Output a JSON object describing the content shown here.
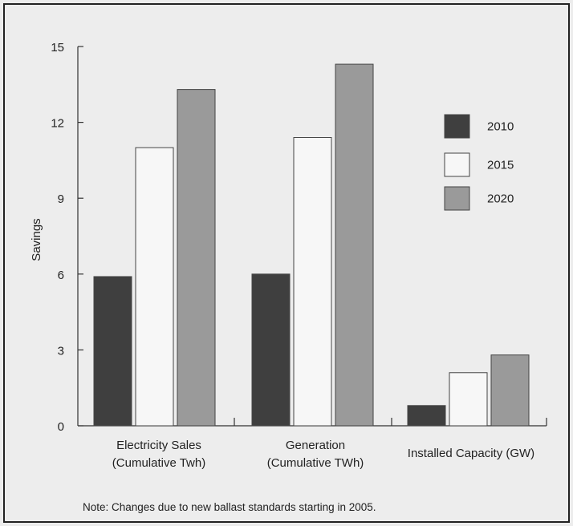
{
  "chart_data": {
    "type": "bar",
    "ylabel": "Savings",
    "ylim": [
      0,
      15
    ],
    "yticks": [
      "0",
      "3",
      "6",
      "9",
      "12",
      "15"
    ],
    "categories": [
      [
        "Electricity Sales",
        "(Cumulative Twh)"
      ],
      [
        "Generation",
        "(Cumulative TWh)"
      ],
      [
        "Installed Capacity (GW)"
      ]
    ],
    "series": [
      {
        "name": "2010",
        "color": "#3f3f3f",
        "values": [
          5.9,
          6.0,
          0.8
        ]
      },
      {
        "name": "2015",
        "color": "#f7f7f7",
        "values": [
          11.0,
          11.4,
          2.1
        ]
      },
      {
        "name": "2020",
        "color": "#9a9a9a",
        "values": [
          13.3,
          14.3,
          2.8
        ]
      }
    ],
    "legend_position": "top-right",
    "grid": false
  },
  "note": "Note: Changes due to new ballast standards starting in 2005."
}
